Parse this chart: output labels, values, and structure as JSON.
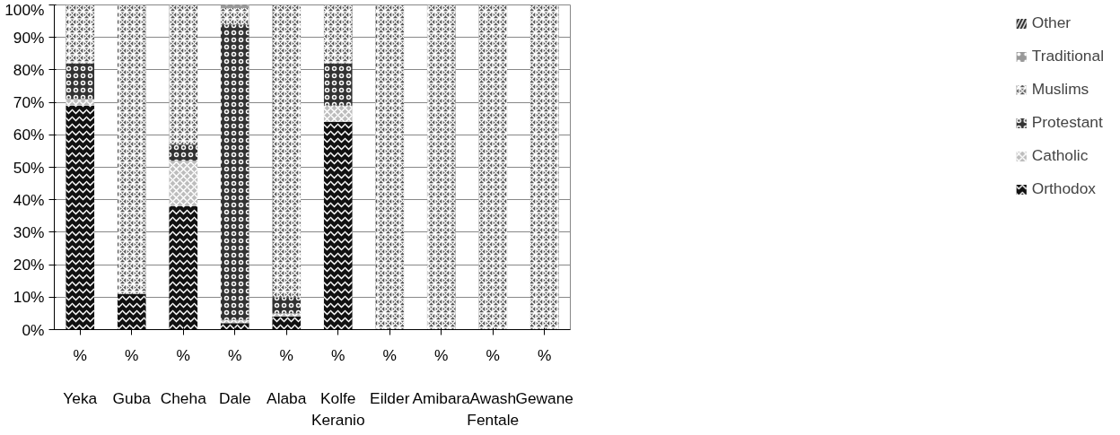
{
  "chart_data": {
    "type": "bar",
    "stacked": true,
    "categories": [
      "%\nYeka",
      "%\nGuba",
      "%\nCheha",
      "%\nDale",
      "%\nAlaba",
      "%\nKolfe Keranio",
      "%\nEilder",
      "%\nAmibara",
      "%\nAwash Fentale",
      "%\nGewane"
    ],
    "series": [
      {
        "name": "Orthodox",
        "color": "#111111",
        "values": [
          69,
          11,
          38,
          2,
          4,
          64,
          0,
          0,
          0,
          0
        ]
      },
      {
        "name": "Catholic",
        "color": "#bdbdbd",
        "values": [
          2,
          0,
          14,
          1,
          1,
          5,
          0,
          0,
          0,
          0
        ]
      },
      {
        "name": "Protestant",
        "color": "#333333",
        "values": [
          11,
          0,
          5,
          91,
          5,
          13,
          0,
          0,
          0,
          0
        ]
      },
      {
        "name": "Muslims",
        "color": "#555555",
        "values": [
          18,
          89,
          43,
          5,
          90,
          18,
          100,
          100,
          100,
          100
        ]
      },
      {
        "name": "Traditional",
        "color": "#999999",
        "values": [
          0,
          0,
          0,
          1,
          0,
          0,
          0,
          0,
          0,
          0
        ]
      },
      {
        "name": "Other",
        "color": "#222222",
        "values": [
          0,
          0,
          0,
          0,
          0,
          0,
          0,
          0,
          0,
          0
        ]
      }
    ],
    "ylim": [
      0,
      100
    ],
    "yticks": [
      {
        "value": 0,
        "label": "0%"
      },
      {
        "value": 10,
        "label": "10%"
      },
      {
        "value": 20,
        "label": "20%"
      },
      {
        "value": 30,
        "label": "30%"
      },
      {
        "value": 40,
        "label": "40%"
      },
      {
        "value": 50,
        "label": "50%"
      },
      {
        "value": 60,
        "label": "60%"
      },
      {
        "value": 70,
        "label": "70%"
      },
      {
        "value": 80,
        "label": "80%"
      },
      {
        "value": 90,
        "label": "90%"
      },
      {
        "value": 100,
        "label": "100%"
      }
    ],
    "grid": "y",
    "legend": "right"
  }
}
